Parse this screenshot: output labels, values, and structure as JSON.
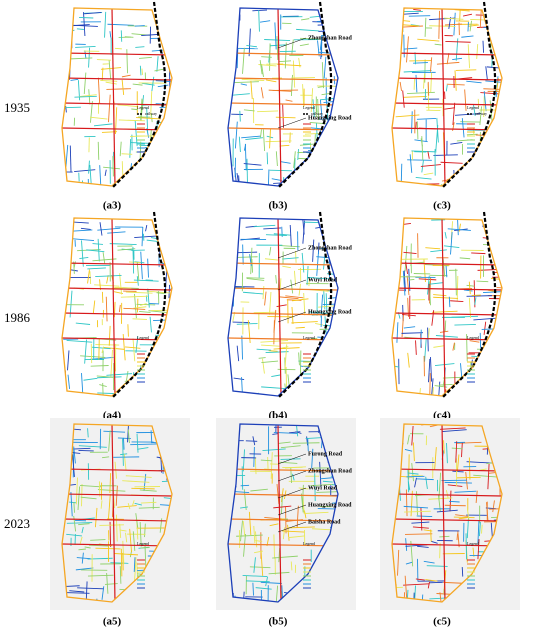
{
  "rows": [
    {
      "year": "1935",
      "panels": [
        {
          "label": "(a3)",
          "legend": "Legend",
          "railway": "railway",
          "roads": []
        },
        {
          "label": "(b3)",
          "legend": "Legend",
          "railway": "railway",
          "roads": [
            "Zhongshan Road",
            "Huangxing Road"
          ]
        },
        {
          "label": "(c3)",
          "legend": "Legend",
          "railway": "railway",
          "roads": []
        }
      ]
    },
    {
      "year": "1986",
      "panels": [
        {
          "label": "(a4)",
          "legend": "Legend",
          "roads": []
        },
        {
          "label": "(b4)",
          "legend": "Legend",
          "roads": [
            "Zhongshan Road",
            "Wuyi Road",
            "Huangxing Road"
          ]
        },
        {
          "label": "(c4)",
          "legend": "Legend",
          "roads": []
        }
      ]
    },
    {
      "year": "2023",
      "panels": [
        {
          "label": "(a5)",
          "legend": "Legend",
          "roads": []
        },
        {
          "label": "(b5)",
          "legend": "Legend",
          "roads": [
            "Furong Road",
            "Zhongshan Road",
            "Wuyi Road",
            "Huangxing Road",
            "Baisha Road"
          ]
        },
        {
          "label": "(c5)",
          "legend": "Legend",
          "roads": []
        }
      ]
    }
  ]
}
